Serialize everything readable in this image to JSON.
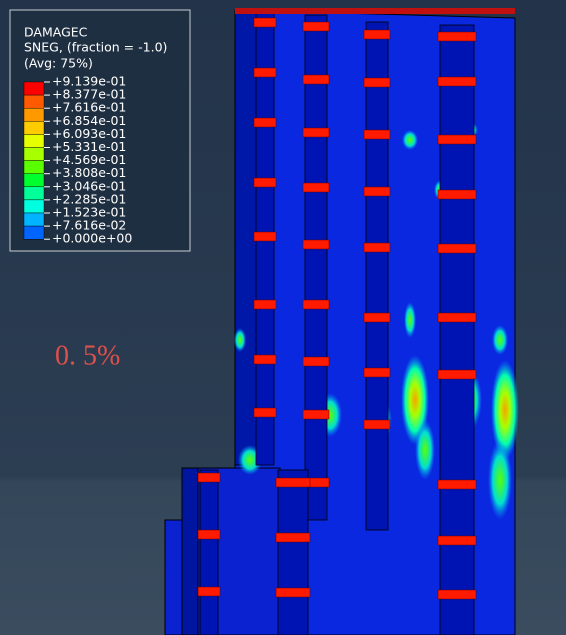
{
  "legend": {
    "title": "DAMAGEC",
    "subtitle": "SNEG, (fraction = -1.0)",
    "note": "(Avg: 75%)",
    "labels": [
      "+9.139e-01",
      "+8.377e-01",
      "+7.616e-01",
      "+6.854e-01",
      "+6.093e-01",
      "+5.331e-01",
      "+4.569e-01",
      "+3.808e-01",
      "+3.046e-01",
      "+2.285e-01",
      "+1.523e-01",
      "+7.616e-02",
      "+0.000e+00"
    ],
    "colors": [
      "#ff0000",
      "#ff5a00",
      "#ff9900",
      "#ffcc00",
      "#e5ff00",
      "#a8ff00",
      "#5aff00",
      "#00ff2e",
      "#00ff99",
      "#00ffe0",
      "#00b4ff",
      "#0064ff",
      "#0000ff"
    ]
  },
  "annotation": "0. 5%"
}
